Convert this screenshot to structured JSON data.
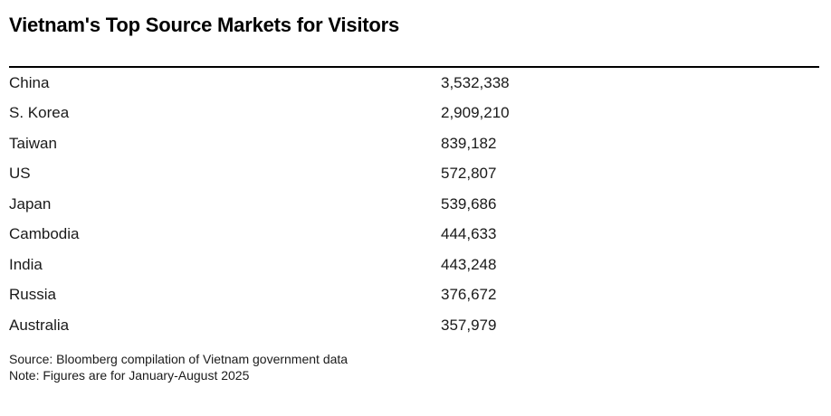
{
  "title": "Vietnam's Top Source Markets for Visitors",
  "chart_data": {
    "type": "table",
    "title": "Vietnam's Top Source Markets for Visitors",
    "categories": [
      "China",
      "S. Korea",
      "Taiwan",
      "US",
      "Japan",
      "Cambodia",
      "India",
      "Russia",
      "Australia"
    ],
    "values": [
      3532338,
      2909210,
      839182,
      572807,
      539686,
      444633,
      443248,
      376672,
      357979
    ],
    "source": "Source: Bloomberg compilation of Vietnam government data",
    "note": "Note: Figures are for January-August 2025",
    "layout": {
      "value_column_align": "left",
      "row_separators": false,
      "header_rule_color": "#000000"
    }
  },
  "table": {
    "rows": [
      {
        "label": "China",
        "value": "3,532,338"
      },
      {
        "label": "S. Korea",
        "value": "2,909,210"
      },
      {
        "label": "Taiwan",
        "value": "839,182"
      },
      {
        "label": "US",
        "value": "572,807"
      },
      {
        "label": "Japan",
        "value": "539,686"
      },
      {
        "label": "Cambodia",
        "value": "444,633"
      },
      {
        "label": "India",
        "value": "443,248"
      },
      {
        "label": "Russia",
        "value": "376,672"
      },
      {
        "label": "Australia",
        "value": "357,979"
      }
    ]
  },
  "footer": {
    "source": "Source: Bloomberg compilation of Vietnam government data",
    "note": "Note: Figures are for January-August 2025"
  }
}
